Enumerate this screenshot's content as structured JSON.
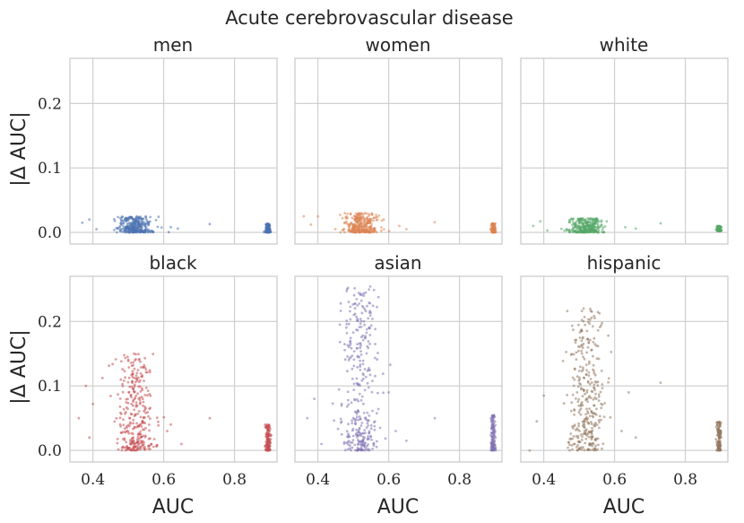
{
  "chart_data": {
    "type": "scatter",
    "title": "Acute cerebrovascular disease",
    "xlabel": "AUC",
    "ylabel": "|Δ AUC|",
    "xlim": [
      0.335,
      0.92
    ],
    "ylim": [
      -0.018,
      0.27
    ],
    "xticks": [
      0.4,
      0.6,
      0.8
    ],
    "xtick_labels": [
      "0.4",
      "0.6",
      "0.8"
    ],
    "yticks": [
      0.0,
      0.1,
      0.2
    ],
    "ytick_labels": [
      "0.0",
      "0.1",
      "0.2"
    ],
    "grid": true,
    "layout": "2 rows x 3 columns",
    "point_sampling_note": "approximate point clouds",
    "panels": [
      {
        "name": "men",
        "color": "#4c72b0",
        "clusters": [
          {
            "x_center": 0.52,
            "x_spread": 0.045,
            "y_min": 0.0,
            "y_max": 0.025,
            "n": 300
          },
          {
            "x_center": 0.895,
            "x_spread": 0.006,
            "y_min": 0.0,
            "y_max": 0.014,
            "n": 120
          }
        ],
        "outliers": [
          [
            0.37,
            0.015
          ],
          [
            0.39,
            0.02
          ],
          [
            0.62,
            0.008
          ],
          [
            0.64,
            0.006
          ],
          [
            0.73,
            0.013
          ],
          [
            0.41,
            0.005
          ]
        ]
      },
      {
        "name": "women",
        "color": "#dd8452",
        "clusters": [
          {
            "x_center": 0.52,
            "x_spread": 0.045,
            "y_min": 0.0,
            "y_max": 0.03,
            "n": 300
          },
          {
            "x_center": 0.895,
            "x_spread": 0.006,
            "y_min": 0.0,
            "y_max": 0.014,
            "n": 120
          }
        ],
        "outliers": [
          [
            0.36,
            0.025
          ],
          [
            0.38,
            0.012
          ],
          [
            0.4,
            0.025
          ],
          [
            0.63,
            0.01
          ],
          [
            0.73,
            0.016
          ],
          [
            0.65,
            0.005
          ]
        ]
      },
      {
        "name": "white",
        "color": "#55a868",
        "clusters": [
          {
            "x_center": 0.52,
            "x_spread": 0.045,
            "y_min": 0.0,
            "y_max": 0.022,
            "n": 300
          },
          {
            "x_center": 0.895,
            "x_spread": 0.006,
            "y_min": 0.002,
            "y_max": 0.01,
            "n": 120
          }
        ],
        "outliers": [
          [
            0.37,
            0.01
          ],
          [
            0.39,
            0.017
          ],
          [
            0.63,
            0.008
          ],
          [
            0.66,
            0.006
          ],
          [
            0.73,
            0.014
          ],
          [
            0.41,
            0.003
          ]
        ]
      },
      {
        "name": "black",
        "color": "#c44e52",
        "clusters": [
          {
            "x_center": 0.52,
            "x_spread": 0.045,
            "y_min": 0.0,
            "y_max": 0.15,
            "n": 320
          },
          {
            "x_center": 0.895,
            "x_spread": 0.006,
            "y_min": 0.0,
            "y_max": 0.04,
            "n": 130
          }
        ],
        "outliers": [
          [
            0.36,
            0.05
          ],
          [
            0.38,
            0.1
          ],
          [
            0.4,
            0.072
          ],
          [
            0.39,
            0.02
          ],
          [
            0.62,
            0.04
          ],
          [
            0.65,
            0.01
          ],
          [
            0.73,
            0.05
          ],
          [
            0.61,
            0.03
          ]
        ]
      },
      {
        "name": "asian",
        "color": "#8172b3",
        "clusters": [
          {
            "x_center": 0.52,
            "x_spread": 0.045,
            "y_min": 0.0,
            "y_max": 0.255,
            "n": 340
          },
          {
            "x_center": 0.895,
            "x_spread": 0.006,
            "y_min": 0.0,
            "y_max": 0.055,
            "n": 130
          }
        ],
        "outliers": [
          [
            0.37,
            0.05
          ],
          [
            0.39,
            0.08
          ],
          [
            0.41,
            0.01
          ],
          [
            0.62,
            0.03
          ],
          [
            0.65,
            0.015
          ],
          [
            0.73,
            0.05
          ],
          [
            0.6,
            0.09
          ]
        ]
      },
      {
        "name": "hispanic",
        "color": "#937860",
        "clusters": [
          {
            "x_center": 0.52,
            "x_spread": 0.045,
            "y_min": 0.0,
            "y_max": 0.22,
            "n": 330
          },
          {
            "x_center": 0.895,
            "x_spread": 0.006,
            "y_min": 0.0,
            "y_max": 0.045,
            "n": 130
          }
        ],
        "outliers": [
          [
            0.36,
            0.0
          ],
          [
            0.38,
            0.045
          ],
          [
            0.4,
            0.085
          ],
          [
            0.62,
            0.03
          ],
          [
            0.64,
            0.09
          ],
          [
            0.73,
            0.105
          ],
          [
            0.66,
            0.02
          ]
        ]
      }
    ]
  }
}
